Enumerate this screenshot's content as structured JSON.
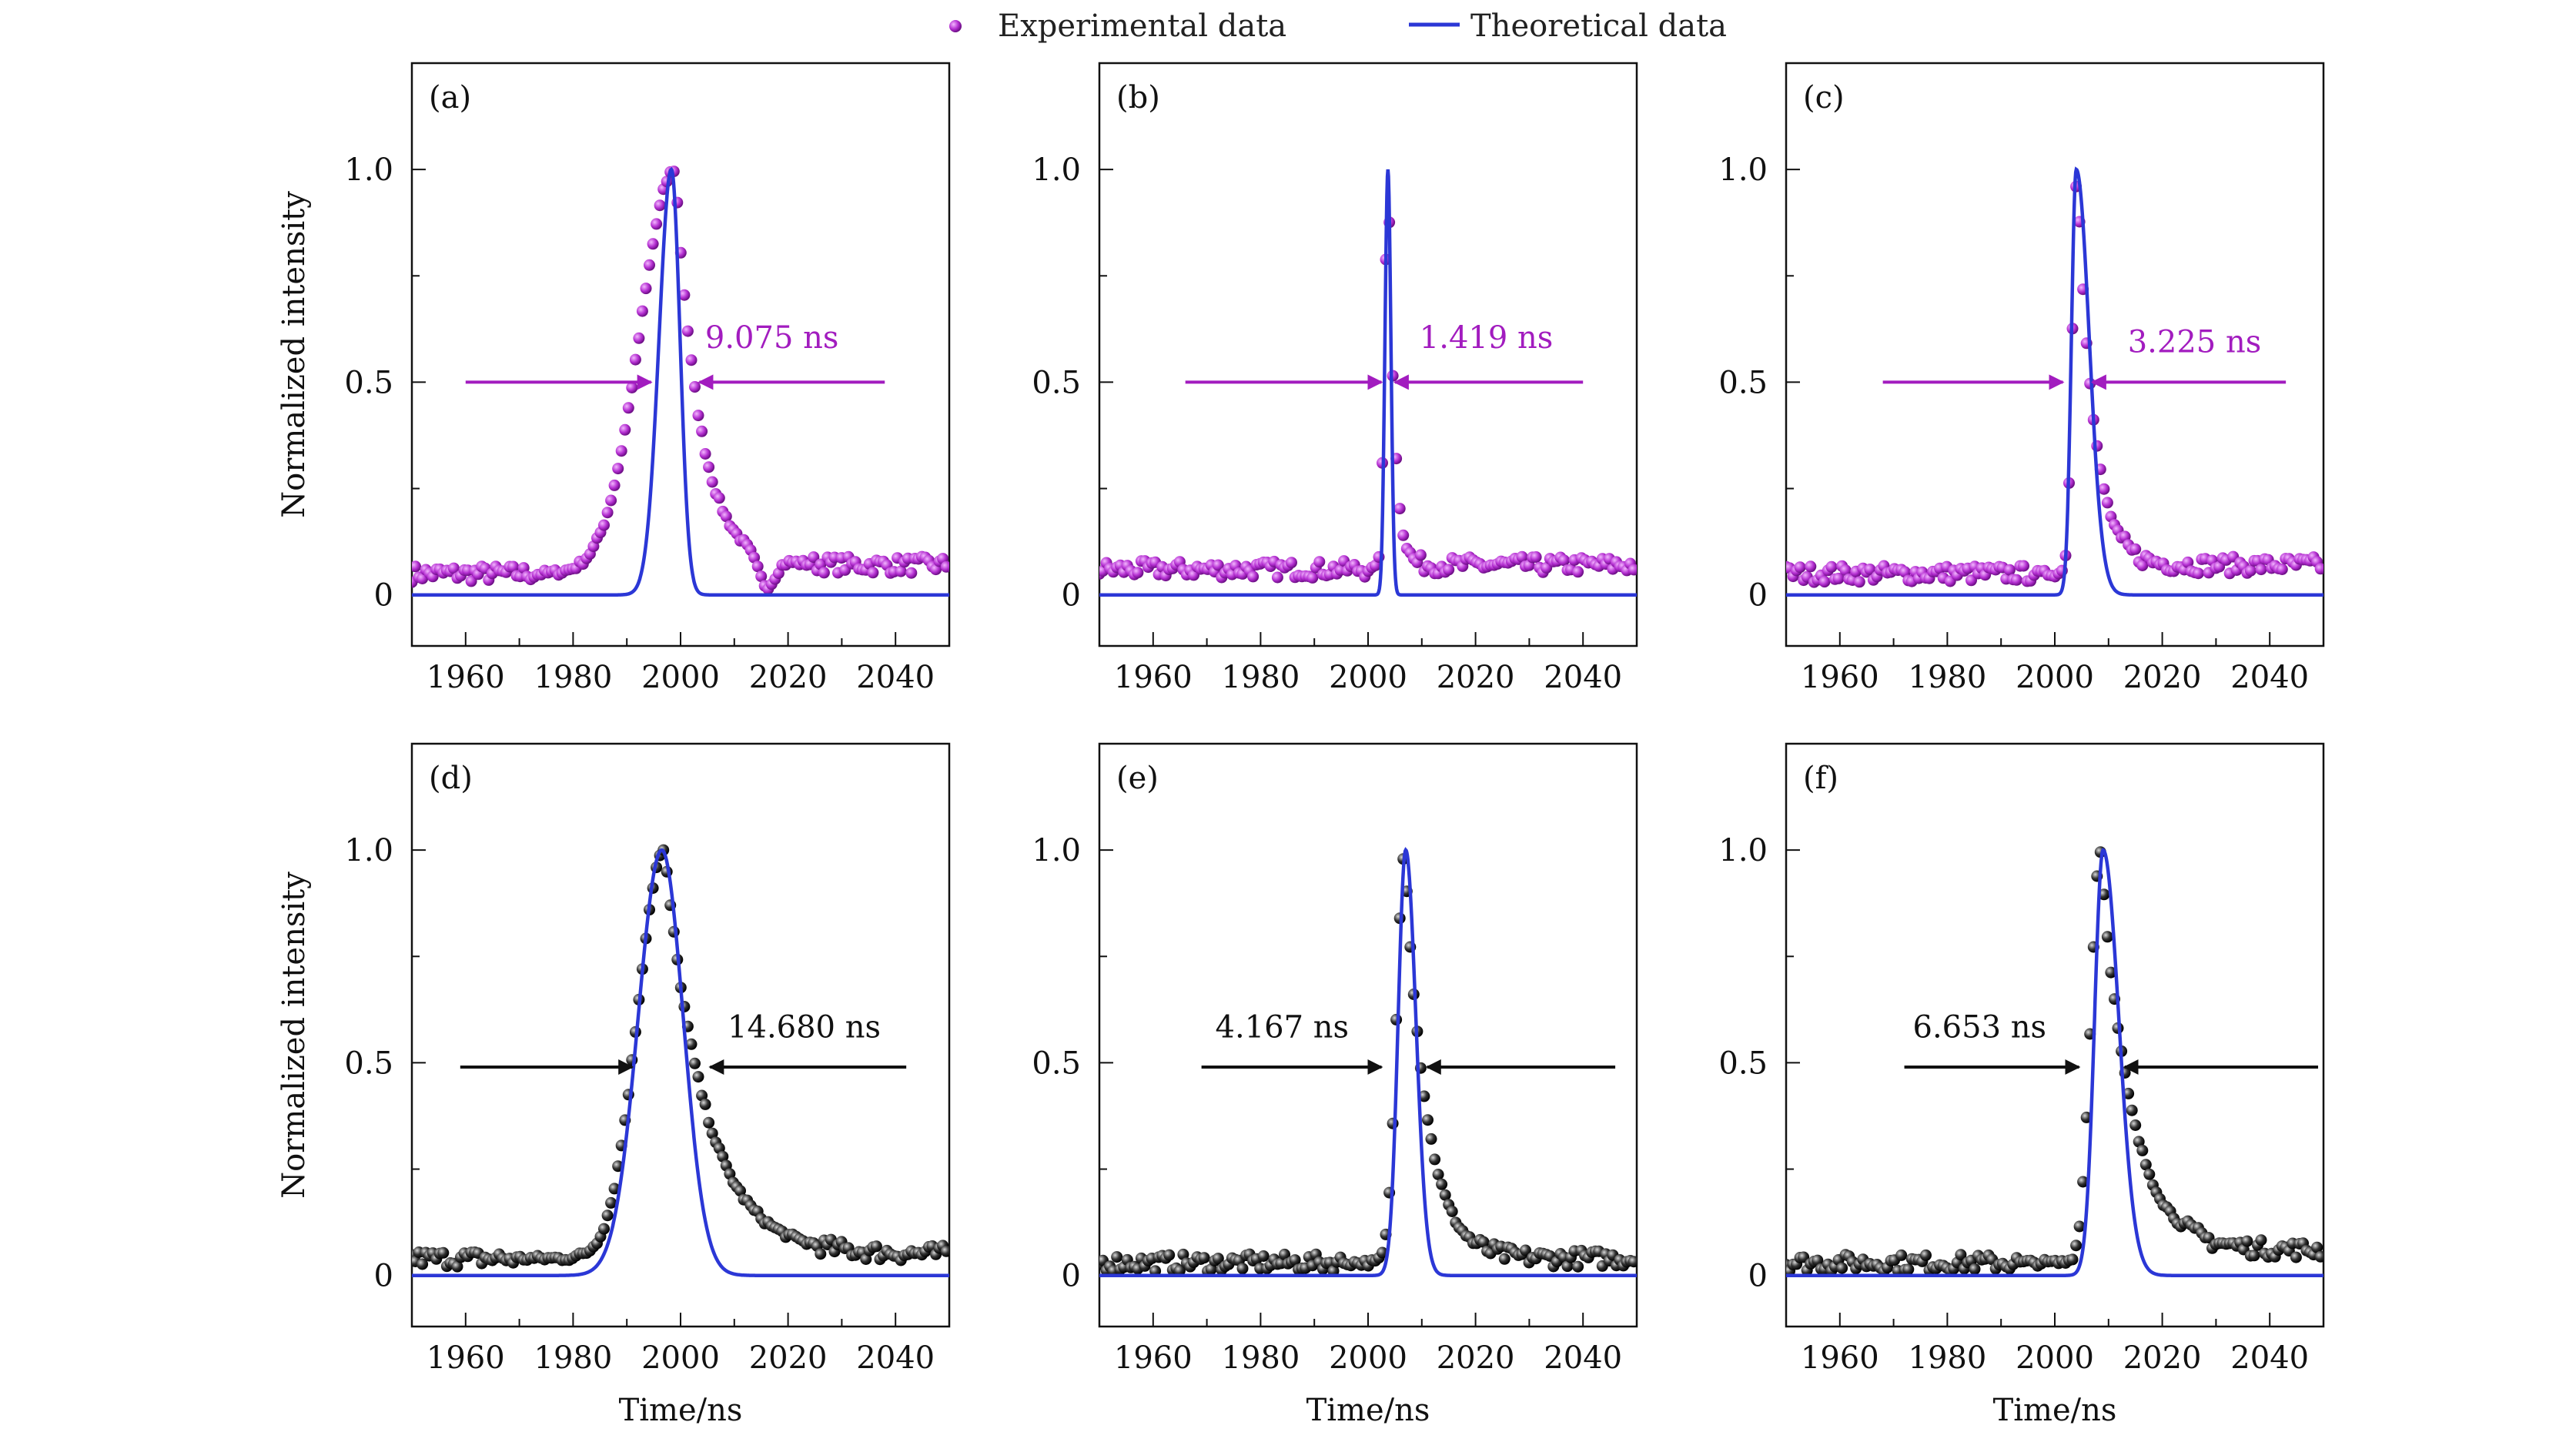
{
  "legend": {
    "experimental": "Experimental data",
    "theoretical": "Theoretical data"
  },
  "colors": {
    "theory": "#2b37d6",
    "magenta": "#a21cbf",
    "black": "#111111"
  },
  "chart_data": [
    {
      "type": "line",
      "label": "(a)",
      "marker_color": "magenta",
      "xlim": [
        1950,
        2050
      ],
      "ylim": [
        -0.12,
        1.25
      ],
      "xticks": [
        "1960",
        "1980",
        "2000",
        "2020",
        "2040"
      ],
      "yticks": [
        "0",
        "0.5",
        "1.0"
      ],
      "ylabel": "Normalized intensity",
      "xlabel": "",
      "theory": {
        "center": 1998.3,
        "sigma_left": 2.3,
        "sigma_right": 1.6
      },
      "experimental": {
        "baseline": 0.05,
        "peak_time": 1999.0,
        "rise": 6.5,
        "decay": 4.5,
        "after_baseline": 0.07,
        "dip_time": 2016,
        "dip_level": 0.0
      },
      "fwhm": {
        "text": "9.075 ns",
        "left_x": 1994.5,
        "right_x": 2003.5,
        "left_arrow_start": 1960,
        "right_arrow_start": 2038,
        "y": 0.5,
        "text_x": 2017,
        "text_y": 0.58
      }
    },
    {
      "type": "line",
      "label": "(b)",
      "marker_color": "magenta",
      "xlim": [
        1950,
        2050
      ],
      "ylim": [
        -0.12,
        1.25
      ],
      "xticks": [
        "1960",
        "1980",
        "2000",
        "2020",
        "2040"
      ],
      "yticks": [
        "0",
        "0.5",
        "1.0"
      ],
      "ylabel": "",
      "xlabel": "",
      "theory": {
        "center": 2003.7,
        "sigma_left": 0.55,
        "sigma_right": 0.55
      },
      "experimental": {
        "baseline": 0.06,
        "peak_time": 2003.8,
        "rise": 0.7,
        "decay": 1.1,
        "after_baseline": 0.07,
        "dip_time": 0,
        "dip_level": 0.06
      },
      "fwhm": {
        "text": "1.419 ns",
        "left_x": 2002.5,
        "right_x": 2005.0,
        "left_arrow_start": 1966,
        "right_arrow_start": 2040,
        "y": 0.5,
        "text_x": 2022,
        "text_y": 0.58
      }
    },
    {
      "type": "line",
      "label": "(c)",
      "marker_color": "magenta",
      "xlim": [
        1950,
        2050
      ],
      "ylim": [
        -0.12,
        1.25
      ],
      "xticks": [
        "1960",
        "1980",
        "2000",
        "2020",
        "2040"
      ],
      "yticks": [
        "0",
        "0.5",
        "1.0"
      ],
      "ylabel": "",
      "xlabel": "",
      "theory": {
        "center": 2004.0,
        "sigma_left": 0.9,
        "sigma_right": 2.4
      },
      "experimental": {
        "baseline": 0.05,
        "peak_time": 2004.2,
        "rise": 0.9,
        "decay": 3.0,
        "after_baseline": 0.07,
        "dip_time": 0,
        "dip_level": 0.05
      },
      "fwhm": {
        "text": "3.225 ns",
        "left_x": 2001.5,
        "right_x": 2007.0,
        "left_arrow_start": 1968,
        "right_arrow_start": 2043,
        "y": 0.5,
        "text_x": 2026,
        "text_y": 0.57
      }
    },
    {
      "type": "line",
      "label": "(d)",
      "marker_color": "black",
      "xlim": [
        1950,
        2050
      ],
      "ylim": [
        -0.12,
        1.25
      ],
      "xticks": [
        "1960",
        "1980",
        "2000",
        "2020",
        "2040"
      ],
      "yticks": [
        "0",
        "0.5",
        "1.0"
      ],
      "ylabel": "Normalized intensity",
      "xlabel": "Time/ns",
      "theory": {
        "center": 1996.5,
        "sigma_left": 4.4,
        "sigma_right": 4.0
      },
      "experimental": {
        "baseline": 0.04,
        "peak_time": 1997.0,
        "rise": 5.0,
        "decay": 7.5,
        "after_baseline": 0.05,
        "dip_time": 0,
        "dip_level": 0.04
      },
      "fwhm": {
        "text": "14.680 ns",
        "left_x": 1991.0,
        "right_x": 2005.5,
        "left_arrow_start": 1959,
        "right_arrow_start": 2042,
        "y": 0.49,
        "text_x": 2023,
        "text_y": 0.56
      }
    },
    {
      "type": "line",
      "label": "(e)",
      "marker_color": "black",
      "xlim": [
        1950,
        2050
      ],
      "ylim": [
        -0.12,
        1.25
      ],
      "xticks": [
        "1960",
        "1980",
        "2000",
        "2020",
        "2040"
      ],
      "yticks": [
        "0",
        "0.5",
        "1.0"
      ],
      "ylabel": "",
      "xlabel": "Time/ns",
      "theory": {
        "center": 2007.0,
        "sigma_left": 1.4,
        "sigma_right": 1.9
      },
      "experimental": {
        "baseline": 0.03,
        "peak_time": 2006.8,
        "rise": 1.5,
        "decay": 4.0,
        "after_baseline": 0.04,
        "dip_time": 0,
        "dip_level": 0.03
      },
      "fwhm": {
        "text": "4.167 ns",
        "left_x": 2002.5,
        "right_x": 2011.0,
        "left_arrow_start": 1969,
        "right_arrow_start": 2046,
        "y": 0.49,
        "text_x": 1984,
        "text_y": 0.56
      }
    },
    {
      "type": "line",
      "label": "(f)",
      "marker_color": "black",
      "xlim": [
        1950,
        2050
      ],
      "ylim": [
        -0.12,
        1.25
      ],
      "xticks": [
        "1960",
        "1980",
        "2000",
        "2020",
        "2040"
      ],
      "yticks": [
        "0",
        "0.5",
        "1.0"
      ],
      "ylabel": "",
      "xlabel": "Time/ns",
      "theory": {
        "center": 2009.0,
        "sigma_left": 1.6,
        "sigma_right": 2.9
      },
      "experimental": {
        "baseline": 0.03,
        "peak_time": 2008.5,
        "rise": 1.8,
        "decay": 5.5,
        "after_baseline": 0.06,
        "dip_time": 0,
        "dip_level": 0.03
      },
      "fwhm": {
        "text": "6.653 ns",
        "left_x": 2004.5,
        "right_x": 2013.0,
        "left_arrow_start": 1972,
        "right_arrow_start": 2049,
        "y": 0.49,
        "text_x": 1986,
        "text_y": 0.56
      }
    }
  ]
}
